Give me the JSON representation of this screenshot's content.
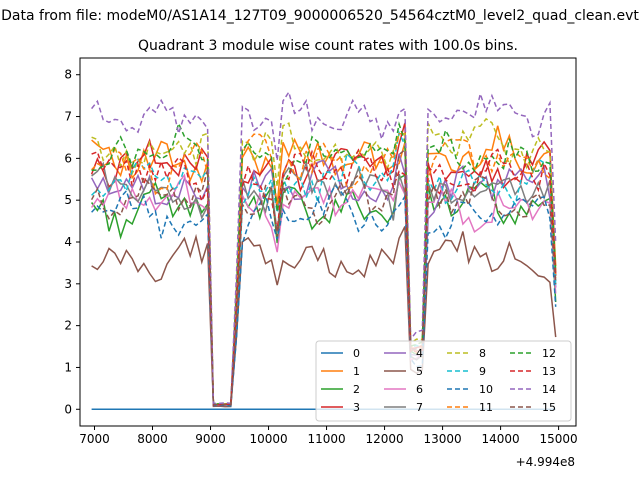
{
  "chart_data": {
    "type": "line",
    "suptitle": "Data from file: modeM0/AS1A14_127T09_9000006520_54564cztM0_level2_quad_clean.evt",
    "title": "Quadrant 3 module wise count rates with 100.0s bins.",
    "xlabel": "",
    "ylabel": "",
    "x_offset_label": "+4.994e8",
    "xlim": [
      6750,
      15300
    ],
    "ylim": [
      -0.4,
      8.4
    ],
    "x_ticks": [
      7000,
      8000,
      9000,
      10000,
      11000,
      12000,
      13000,
      14000,
      15000
    ],
    "x_tick_labels": [
      "7000",
      "8000",
      "9000",
      "10000",
      "11000",
      "12000",
      "13000",
      "14000",
      "15000"
    ],
    "y_ticks": [
      0,
      1,
      2,
      3,
      4,
      5,
      6,
      7,
      8
    ],
    "y_tick_labels": [
      "0",
      "1",
      "2",
      "3",
      "4",
      "5",
      "6",
      "7",
      "8"
    ],
    "x_start": 6950,
    "x_step": 100,
    "legend_location": "lower right",
    "legend_columns": 4,
    "colors": [
      "#1f77b4",
      "#ff7f0e",
      "#2ca02c",
      "#d62728",
      "#9467bd",
      "#8c564b",
      "#e377c2",
      "#7f7f7f",
      "#bcbd22",
      "#17becf"
    ],
    "series": [
      {
        "name": "0",
        "style": "solid",
        "color": "#1f77b4",
        "baseline": 0.0,
        "active": false
      },
      {
        "name": "1",
        "style": "solid",
        "color": "#ff7f0e",
        "baseline": 6.0
      },
      {
        "name": "2",
        "style": "solid",
        "color": "#2ca02c",
        "baseline": 4.9
      },
      {
        "name": "3",
        "style": "solid",
        "color": "#d62728",
        "baseline": 5.8
      },
      {
        "name": "4",
        "style": "solid",
        "color": "#9467bd",
        "baseline": 5.3
      },
      {
        "name": "5",
        "style": "solid",
        "color": "#8c564b",
        "baseline": 3.6
      },
      {
        "name": "6",
        "style": "solid",
        "color": "#e377c2",
        "baseline": 5.0
      },
      {
        "name": "7",
        "style": "solid",
        "color": "#7f7f7f",
        "baseline": 5.2
      },
      {
        "name": "8",
        "style": "dashed",
        "color": "#bcbd22",
        "baseline": 6.3
      },
      {
        "name": "9",
        "style": "dashed",
        "color": "#17becf",
        "baseline": 5.5
      },
      {
        "name": "10",
        "style": "dashed",
        "color": "#1f77b4",
        "baseline": 4.6
      },
      {
        "name": "11",
        "style": "dashed",
        "color": "#ff7f0e",
        "baseline": 5.9
      },
      {
        "name": "12",
        "style": "dashed",
        "color": "#2ca02c",
        "baseline": 6.1
      },
      {
        "name": "13",
        "style": "dashed",
        "color": "#d62728",
        "baseline": 5.6
      },
      {
        "name": "14",
        "style": "dashed",
        "color": "#9467bd",
        "baseline": 7.0
      },
      {
        "name": "15",
        "style": "dashed",
        "color": "#8c564b",
        "baseline": 5.1
      }
    ]
  }
}
